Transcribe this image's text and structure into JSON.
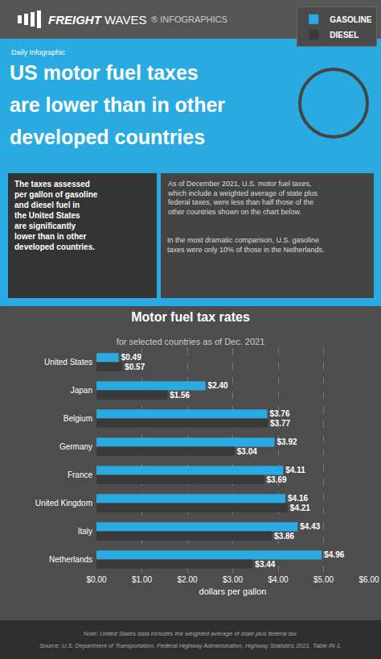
{
  "chart_data": {
    "type": "bar",
    "orientation": "horizontal",
    "title": "Motor fuel tax rates",
    "subtitle": "for selected countries as of Dec. 2021",
    "categories": [
      "United States",
      "Japan",
      "Belgium",
      "Germany",
      "France",
      "United Kingdom",
      "Italy",
      "Netherlands"
    ],
    "series": [
      {
        "name": "GASOLINE",
        "color": "#29abe2",
        "values": [
          0.49,
          2.4,
          3.76,
          3.92,
          4.11,
          4.16,
          4.43,
          4.96
        ],
        "value_labels": [
          "$0.49",
          "$2.40",
          "$3.76",
          "$3.92",
          "$4.11",
          "$4.16",
          "$4.43",
          "$4.96"
        ]
      },
      {
        "name": "DIESEL",
        "color": "#3a3a3a",
        "values": [
          0.57,
          1.56,
          3.77,
          3.04,
          3.69,
          4.21,
          3.86,
          3.44
        ],
        "value_labels": [
          "$0.57",
          "$1.56",
          "$3.77",
          "$3.04",
          "$3.69",
          "$4.21",
          "$3.86",
          "$3.44"
        ]
      }
    ],
    "xlabel": "dollars per gallon",
    "xlim": [
      0,
      6
    ],
    "xticks": [
      {
        "value": 0,
        "label": "$0.00"
      },
      {
        "value": 1,
        "label": "$1.00"
      },
      {
        "value": 2,
        "label": "$2.00"
      },
      {
        "value": 3,
        "label": "$3.00"
      },
      {
        "value": 4,
        "label": "$4.00"
      },
      {
        "value": 5,
        "label": "$5.00"
      },
      {
        "value": 6,
        "label": "$6.00"
      }
    ],
    "grid": true,
    "legend": "upper right",
    "data_labels": true,
    "annotations": [
      "FREIGHT",
      "WAVES",
      "® INFOGRAPHICS",
      "Daily Infographic",
      "US motor fuel taxes",
      "are lower than in other",
      "developed countries",
      "The taxes assessed\nper gallon of gasoline\nand diesel fuel in\nthe United States\nare significantly\nlower than in other\ndeveloped countries.",
      "As of December 2021, U.S. motor fuel taxes,\nwhich include a weighted average of state plus\nfederal taxes, were less than half those of the\nother countries shown on the chart below.",
      "In the most dramatic comparison, U.S. gasoline\ntaxes were only 10% of those in the Netherlands.",
      "Note: United States data includes the weighted average of state plus federal tax.",
      "Source: U.S. Department of Transportation, Federal Highway Administration, Highway Statistics 2021, Table IN-1."
    ]
  }
}
